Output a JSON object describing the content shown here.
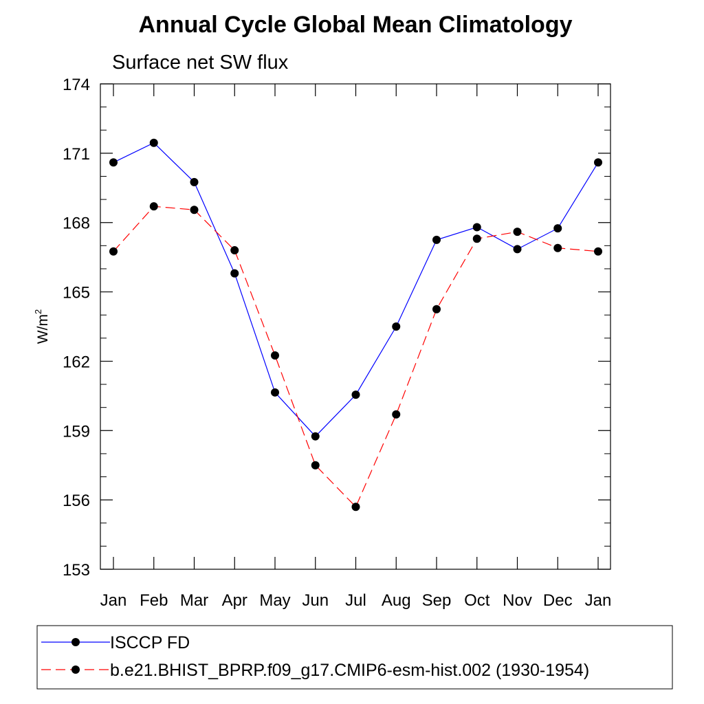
{
  "chart_data": {
    "type": "line",
    "title": "Annual Cycle Global Mean Climatology",
    "subtitle": "Surface net SW flux",
    "ylabel": "W/m",
    "ylabel_sup": "2",
    "xlabel": "",
    "categories": [
      "Jan",
      "Feb",
      "Mar",
      "Apr",
      "May",
      "Jun",
      "Jul",
      "Aug",
      "Sep",
      "Oct",
      "Nov",
      "Dec",
      "Jan"
    ],
    "ylim": [
      153,
      174
    ],
    "yticks": [
      153,
      156,
      159,
      162,
      165,
      168,
      171,
      174
    ],
    "series": [
      {
        "name": "ISCCP FD",
        "color": "#0000ff",
        "dash": "solid",
        "values": [
          170.6,
          171.45,
          169.75,
          165.8,
          160.65,
          158.75,
          160.55,
          163.5,
          167.25,
          167.8,
          166.85,
          167.75,
          170.6
        ]
      },
      {
        "name": "b.e21.BHIST_BPRP.f09_g17.CMIP6-esm-hist.002 (1930-1954)",
        "color": "#ff0000",
        "dash": "dashed",
        "values": [
          166.75,
          168.7,
          168.55,
          166.8,
          162.25,
          157.5,
          155.7,
          159.7,
          164.25,
          167.3,
          167.6,
          166.9,
          166.75
        ]
      }
    ],
    "grid": false,
    "legend_position": "bottom"
  }
}
